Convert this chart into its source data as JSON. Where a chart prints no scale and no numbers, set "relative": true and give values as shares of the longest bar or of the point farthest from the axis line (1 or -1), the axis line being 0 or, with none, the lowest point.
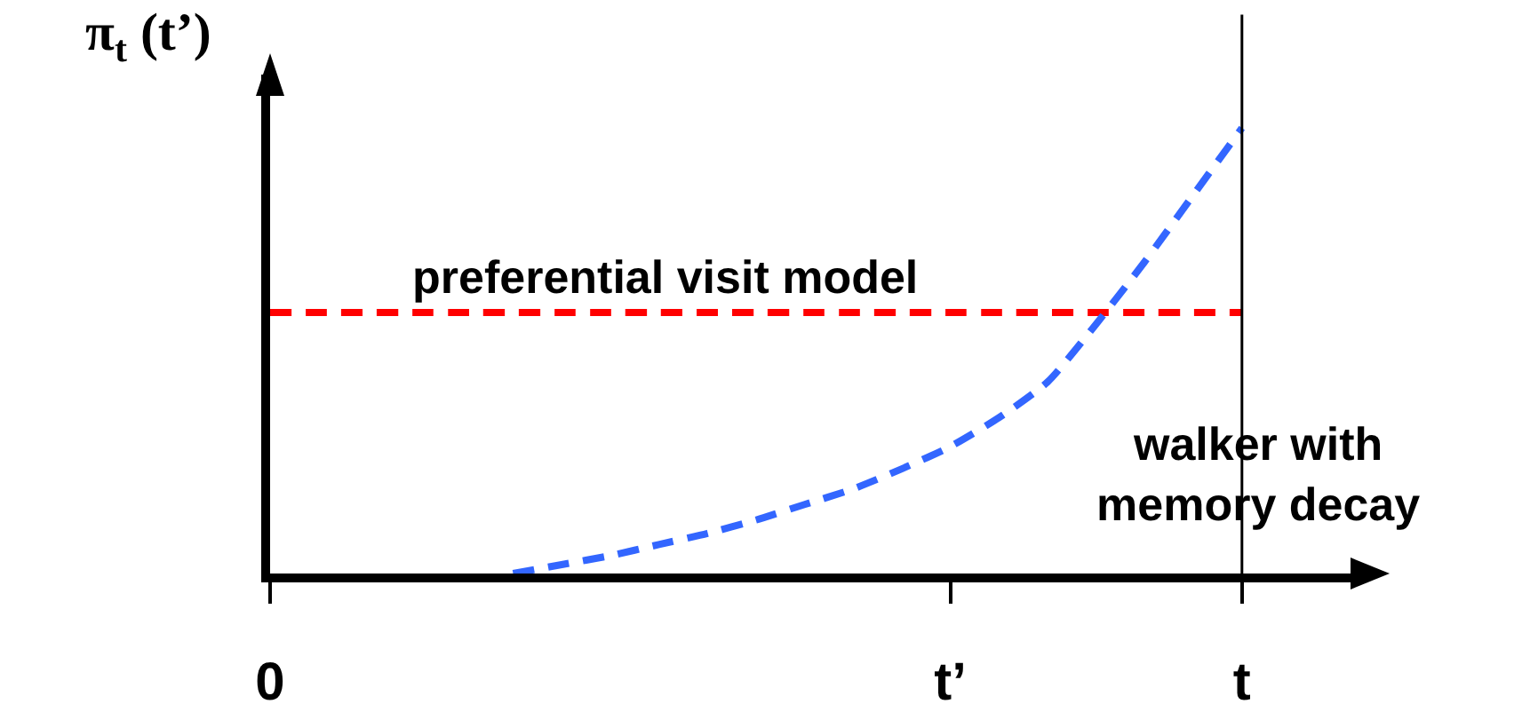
{
  "chart_data": {
    "type": "line",
    "relative": true,
    "ylabel": "π$_{t}$ (t’)",
    "categories": [
      "0",
      null,
      null,
      null,
      null,
      null,
      null,
      null,
      null,
      null,
      null,
      null,
      null,
      null,
      "t’",
      null,
      null,
      null,
      null,
      null,
      "t"
    ],
    "tick_labels": "x",
    "line_style": "dashed",
    "marker": "none",
    "series": [
      {
        "color": "#ff0000",
        "values": [
          0.586,
          0.586,
          0.586,
          0.586,
          0.586,
          0.586,
          0.586,
          0.586,
          0.586,
          0.586,
          0.586,
          0.586,
          0.586,
          0.586,
          0.586,
          0.586,
          0.586,
          0.586,
          0.586,
          0.586,
          0.586
        ]
      },
      {
        "color": "#3366ff",
        "values": [
          null,
          null,
          null,
          null,
          null,
          0,
          0.02,
          0.04,
          0.065,
          0.09,
          0.12,
          0.155,
          0.19,
          0.235,
          0.285,
          0.35,
          0.43,
          0.56,
          0.7,
          0.85,
          1
        ]
      }
    ],
    "ref_lines": [
      {
        "axis": "x",
        "value": "t",
        "color": "#000000"
      }
    ],
    "annotations": [
      "preferential visit model",
      "walker with\nmemory decay"
    ]
  }
}
